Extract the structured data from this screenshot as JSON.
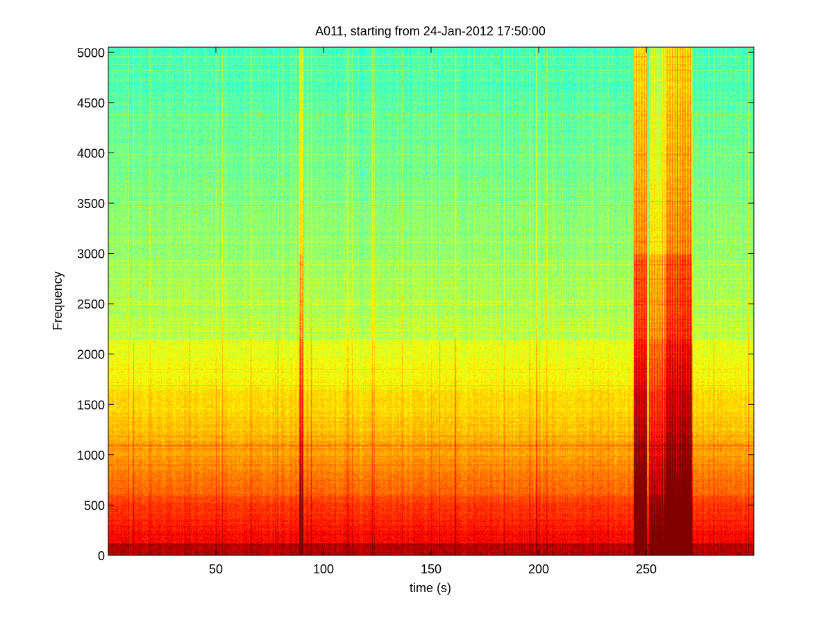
{
  "chart_data": {
    "type": "heatmap",
    "title": "A011, starting from 24-Jan-2012 17:50:00",
    "xlabel": "time (s)",
    "ylabel": "Frequency",
    "xlim": [
      0,
      300
    ],
    "ylim": [
      0,
      5050
    ],
    "x_ticks": [
      50,
      100,
      150,
      200,
      250
    ],
    "y_ticks": [
      0,
      500,
      1000,
      1500,
      2000,
      2500,
      3000,
      3500,
      4000,
      4500,
      5000
    ],
    "colormap": "jet",
    "colors": {
      "background": "#34e8c8",
      "low": "#2fd9d0",
      "mid": "#c8f020",
      "high_yellow": "#ffff00",
      "orange": "#ff9000",
      "red": "#e01000"
    },
    "features": {
      "broadband_events": [
        {
          "t_start": 88.5,
          "t_end": 90.5,
          "intensity": "high"
        },
        {
          "t_start": 244,
          "t_end": 250,
          "intensity": "very high"
        },
        {
          "t_start": 251,
          "t_end": 259,
          "intensity": "high"
        },
        {
          "t_start": 259,
          "t_end": 271,
          "intensity": "very high"
        }
      ],
      "low_frequency_band": {
        "f_max": 600,
        "intensity": "very high"
      },
      "mid_frequency_band": {
        "f_max": 1100,
        "intensity": "high"
      },
      "elevated_band": {
        "f_max": 2100,
        "intensity": "moderate"
      }
    }
  }
}
